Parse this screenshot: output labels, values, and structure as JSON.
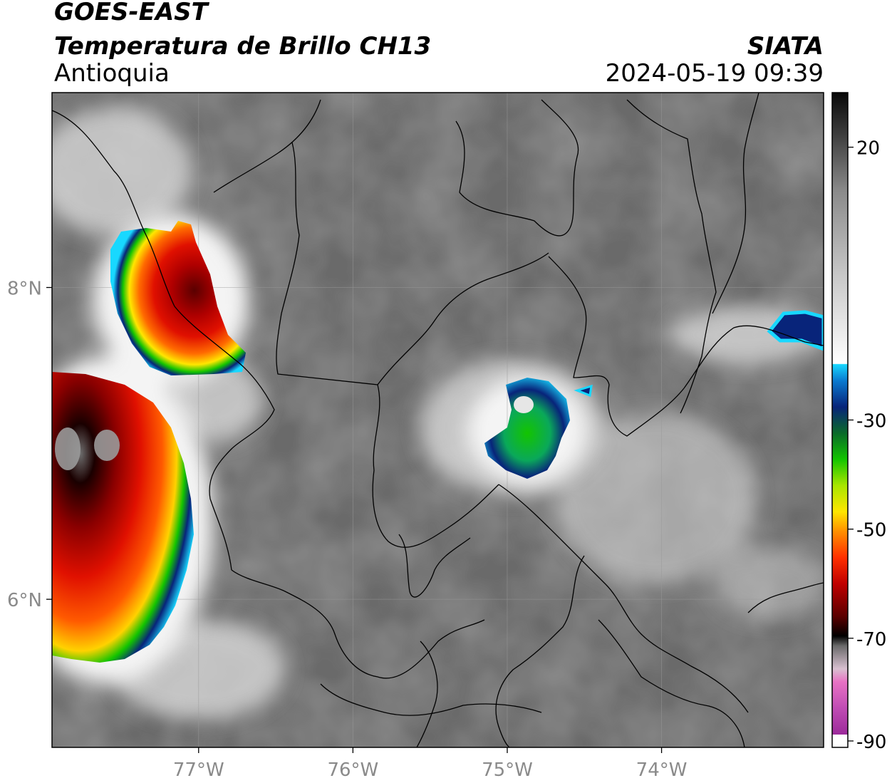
{
  "header": {
    "line1": "GOES-EAST",
    "line2": "Temperatura de Brillo CH13",
    "region": "Antioquia",
    "organization": "SIATA",
    "datetime": "2024-05-19 09:39"
  },
  "map": {
    "lon_range": [
      -77.95,
      -72.95
    ],
    "lat_range": [
      5.05,
      9.25
    ],
    "lon_ticks": [
      {
        "value": -77,
        "label": "77°W"
      },
      {
        "value": -76,
        "label": "76°W"
      },
      {
        "value": -75,
        "label": "75°W"
      },
      {
        "value": -74,
        "label": "74°W"
      }
    ],
    "lat_ticks": [
      {
        "value": 8,
        "label": "8°N"
      },
      {
        "value": 6,
        "label": "6°N"
      }
    ],
    "gridlines": true
  },
  "colorbar": {
    "range": [
      -90,
      30
    ],
    "ticks": [
      {
        "value": 20,
        "label": "20"
      },
      {
        "value": -30,
        "label": "-30"
      },
      {
        "value": -50,
        "label": "-50"
      },
      {
        "value": -70,
        "label": "-70"
      },
      {
        "value": -90,
        "label": "-90"
      }
    ],
    "colors": {
      "purple": "#9c2aa0",
      "pink": "#e872c4",
      "black": "#000000",
      "dark_red": "#5a0000",
      "red": "#e01000",
      "orange": "#ff8c00",
      "yellow": "#ffe600",
      "green": "#13c400",
      "dark_blue": "#08247a",
      "cyan": "#18d8ff",
      "white": "#ffffff",
      "gray": "#7a7a7a"
    }
  }
}
